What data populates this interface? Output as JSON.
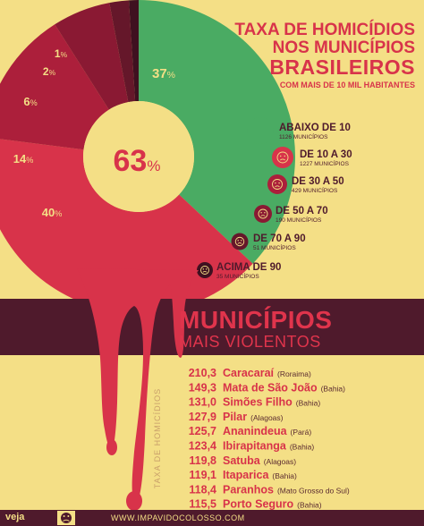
{
  "header": {
    "title_line1": "TAXA DE HOMICÍDIOS",
    "title_line2": "NOS MUNICÍPIOS",
    "title_line3": "BRASILEIROS",
    "subtitle": "COM MAIS DE 10 MIL HABITANTES"
  },
  "chart_data": [
    {
      "type": "pie",
      "center_label": "63",
      "center_unit": "%",
      "slices": [
        {
          "label": "37%",
          "value": 37,
          "color": "#4aab63",
          "legend": "ABAIXO DE 10",
          "count_text": "1126 MUNICÍPIOS"
        },
        {
          "label": "40%",
          "value": 40,
          "color": "#d8334a",
          "legend": "DE 10 A 30",
          "count_text": "1227 MUNICÍPIOS"
        },
        {
          "label": "14%",
          "value": 14,
          "color": "#ac1f3b",
          "legend": "DE 30 A 50",
          "count_text": "429 MUNICÍPIOS"
        },
        {
          "label": "6%",
          "value": 6,
          "color": "#8a1933",
          "legend": "DE 50 A 70",
          "count_text": "190 MUNICÍPIOS"
        },
        {
          "label": "2%",
          "value": 2,
          "color": "#65172a",
          "legend": "DE 70 A 90",
          "count_text": "51 MUNICÍPIOS"
        },
        {
          "label": "1%",
          "value": 1,
          "color": "#3f1120",
          "legend": "ACIMA DE 90",
          "count_text": "35 MUNICÍPIOS"
        }
      ]
    },
    {
      "type": "table",
      "title": "MUNICÍPIOS",
      "subtitle": "MAIS VIOLENTOS",
      "ylabel": "TAXA DE HOMICÍDIOS",
      "rows": [
        {
          "value": "210,3",
          "city": "Caracaraí",
          "state": "(Roraima)"
        },
        {
          "value": "149,3",
          "city": "Mata de São João",
          "state": "(Bahia)"
        },
        {
          "value": "131,0",
          "city": "Simões Filho",
          "state": "(Bahia)"
        },
        {
          "value": "127,9",
          "city": "Pilar",
          "state": "(Alagoas)"
        },
        {
          "value": "125,7",
          "city": "Ananindeua",
          "state": "(Pará)"
        },
        {
          "value": "123,4",
          "city": "Ibirapitanga",
          "state": "(Bahia)"
        },
        {
          "value": "119,8",
          "city": "Satuba",
          "state": "(Alagoas)"
        },
        {
          "value": "119,1",
          "city": "Itaparica",
          "state": "(Bahia)"
        },
        {
          "value": "118,4",
          "city": "Paranhos",
          "state": "(Mato Grosso do Sul)"
        },
        {
          "value": "115,5",
          "city": "Porto Seguro",
          "state": "(Bahia)"
        }
      ]
    }
  ],
  "footer": {
    "brand": "veja",
    "icon": "frown-face-icon",
    "url": "WWW.IMPAVIDOCOLOSSO.COM"
  },
  "icons": [
    "smiley-face-icon",
    "frown-face-icon"
  ]
}
